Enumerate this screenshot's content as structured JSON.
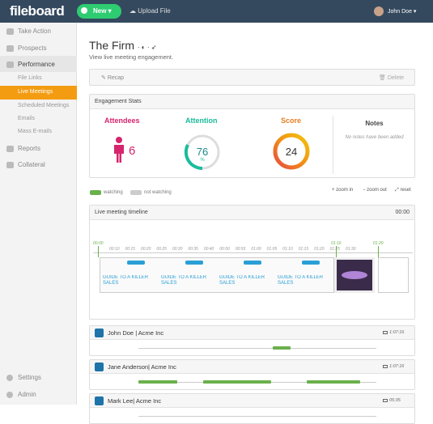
{
  "header": {
    "logo": "fileboard",
    "new_button": "New",
    "upload": "Upload File",
    "user": "John Doe"
  },
  "sidebar": {
    "items": [
      "Take Action",
      "Prospects",
      "Performance",
      "Reports",
      "Collateral"
    ],
    "subitems": [
      "File Links",
      "Live Meetings",
      "Scheduled Meetings",
      "Emails",
      "Mass E-mails"
    ],
    "bottom": [
      "Settings",
      "Admin"
    ]
  },
  "page": {
    "title": "The Firm",
    "subtitle": "View live meeting engagement.",
    "recap": "Recap",
    "delete": "Delete"
  },
  "stats": {
    "title": "Engagement Stats",
    "attendees_label": "Attendees",
    "attendees": "6",
    "attention_label": "Attention",
    "attention": "76",
    "attention_unit": "%",
    "score_label": "Score",
    "score": "24",
    "notes_label": "Notes",
    "notes_empty": "No notes have been added"
  },
  "legend": {
    "watching": "watching",
    "not_watching": "not watching",
    "zoom_in": "zoom in",
    "zoom_out": "zoom out",
    "reset": "reset"
  },
  "timeline": {
    "title": "Live meeting timeline",
    "time": "00:00",
    "ticks": [
      "00:10",
      "00:15",
      "00:20",
      "00:25",
      "00:30",
      "00:35",
      "00:40",
      "00:50",
      "00:55",
      "01:00",
      "01:05",
      "01:10",
      "01:15",
      "01:20",
      "01:25",
      "01:30"
    ],
    "markers": [
      "00:00",
      "01:16",
      "01:29"
    ],
    "slides": [
      "GUIDE TO A KILLER SALES",
      "GUIDE TO A KILLER SALES",
      "GUIDE TO A KILLER SALES",
      "GUIDE TO A KILLER SALES"
    ]
  },
  "attendees": [
    {
      "name": "John Doe | Acme Inc",
      "time": "1:07:16"
    },
    {
      "name": "Jane Anderson| Acme Inc",
      "time": "1:07:16"
    },
    {
      "name": "Mark Lee| Acme Inc",
      "time": "05:35"
    }
  ]
}
